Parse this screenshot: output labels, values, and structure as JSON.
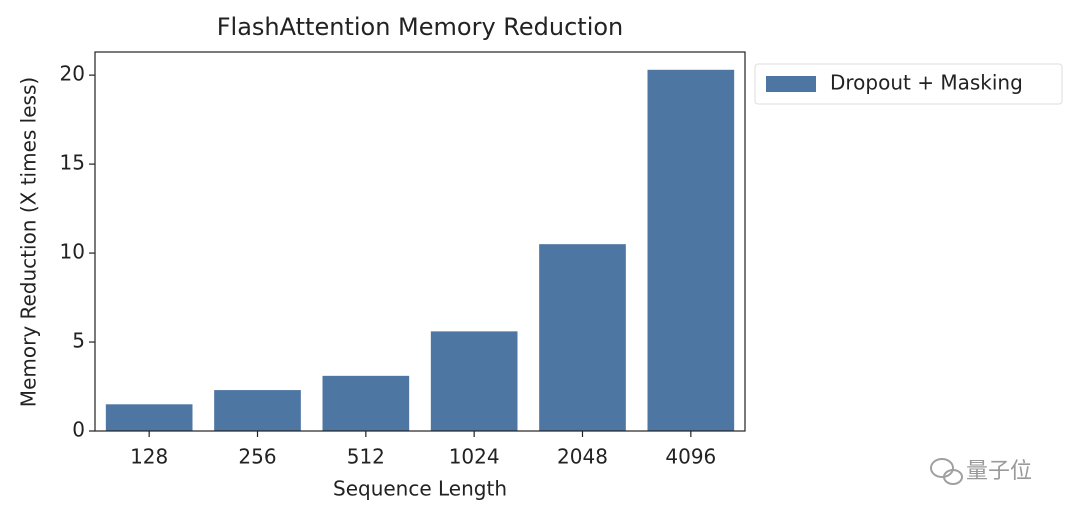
{
  "chart_data": {
    "type": "bar",
    "title": "FlashAttention Memory Reduction",
    "x_label": "Sequence Length",
    "y_label": "Memory Reduction (X times less)",
    "categories": [
      "128",
      "256",
      "512",
      "1024",
      "2048",
      "4096"
    ],
    "series": [
      {
        "name": "Dropout + Masking",
        "color": "#4e76a3",
        "values": [
          1.5,
          2.3,
          3.1,
          5.6,
          10.5,
          20.3
        ]
      }
    ],
    "ylim": [
      0,
      21.3
    ],
    "yticks": [
      0,
      5,
      10,
      15,
      20
    ],
    "grid": false,
    "legend": "outside right"
  },
  "watermark": "量子位"
}
